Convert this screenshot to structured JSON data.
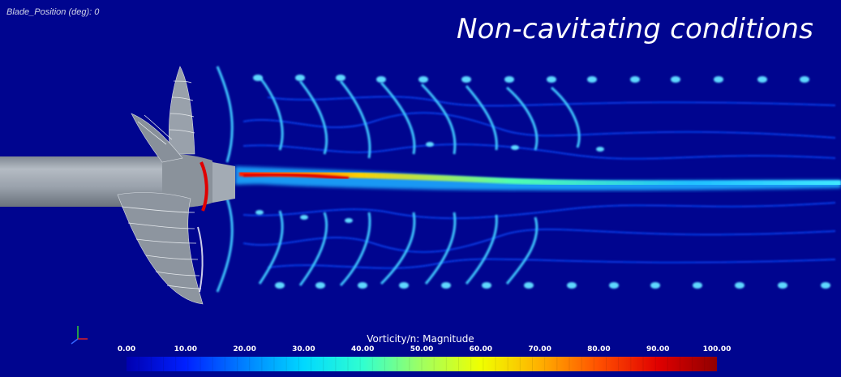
{
  "header": {
    "blade_position": "Blade_Position (deg): 0",
    "title": "Non-cavitating conditions"
  },
  "legend": {
    "title": "Vorticity/n: Magnitude",
    "ticks": [
      "0.00",
      "10.00",
      "20.00",
      "30.00",
      "40.00",
      "50.00",
      "60.00",
      "70.00",
      "80.00",
      "90.00",
      "100.00"
    ],
    "range": [
      0,
      100
    ],
    "colors": [
      "#0000b0",
      "#0020ff",
      "#0080ff",
      "#00d8ff",
      "#30ffd0",
      "#a0ff60",
      "#f0ff00",
      "#ffb000",
      "#ff5000",
      "#e00000",
      "#900000"
    ]
  },
  "scene": {
    "background": "#00058f",
    "shaft_color": "#9aa2ac",
    "propeller_color": "#8a929b"
  }
}
